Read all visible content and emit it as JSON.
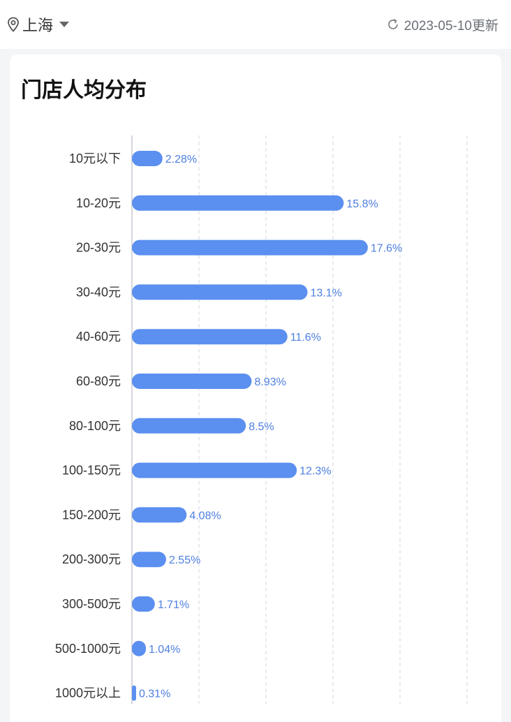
{
  "header": {
    "city": "上海",
    "location_icon": "location-pin-icon",
    "dropdown_icon": "caret-down-icon",
    "refresh_icon": "refresh-icon",
    "update_text": "2023-05-10更新"
  },
  "card": {
    "title": "门店人均分布"
  },
  "colors": {
    "bar": "#5b8ff0",
    "value_label": "#4e7fe0",
    "grid": "#d3d7de",
    "axis": "#b8bcc4"
  },
  "chart_data": {
    "type": "bar",
    "orientation": "horizontal",
    "title": "门店人均分布",
    "categories": [
      "10元以下",
      "10-20元",
      "20-30元",
      "30-40元",
      "40-60元",
      "60-80元",
      "80-100元",
      "100-150元",
      "150-200元",
      "200-300元",
      "300-500元",
      "500-1000元",
      "1000元以上"
    ],
    "values": [
      2.28,
      15.8,
      17.6,
      13.1,
      11.6,
      8.93,
      8.5,
      12.3,
      4.08,
      2.55,
      1.71,
      1.04,
      0.31
    ],
    "value_labels": [
      "2.28%",
      "15.8%",
      "17.6%",
      "13.1%",
      "11.6%",
      "8.93%",
      "8.5%",
      "12.3%",
      "4.08%",
      "2.55%",
      "1.71%",
      "1.04%",
      "0.31%"
    ],
    "unit": "%",
    "xlim": [
      0,
      25
    ],
    "grid": true,
    "legend": "none"
  }
}
